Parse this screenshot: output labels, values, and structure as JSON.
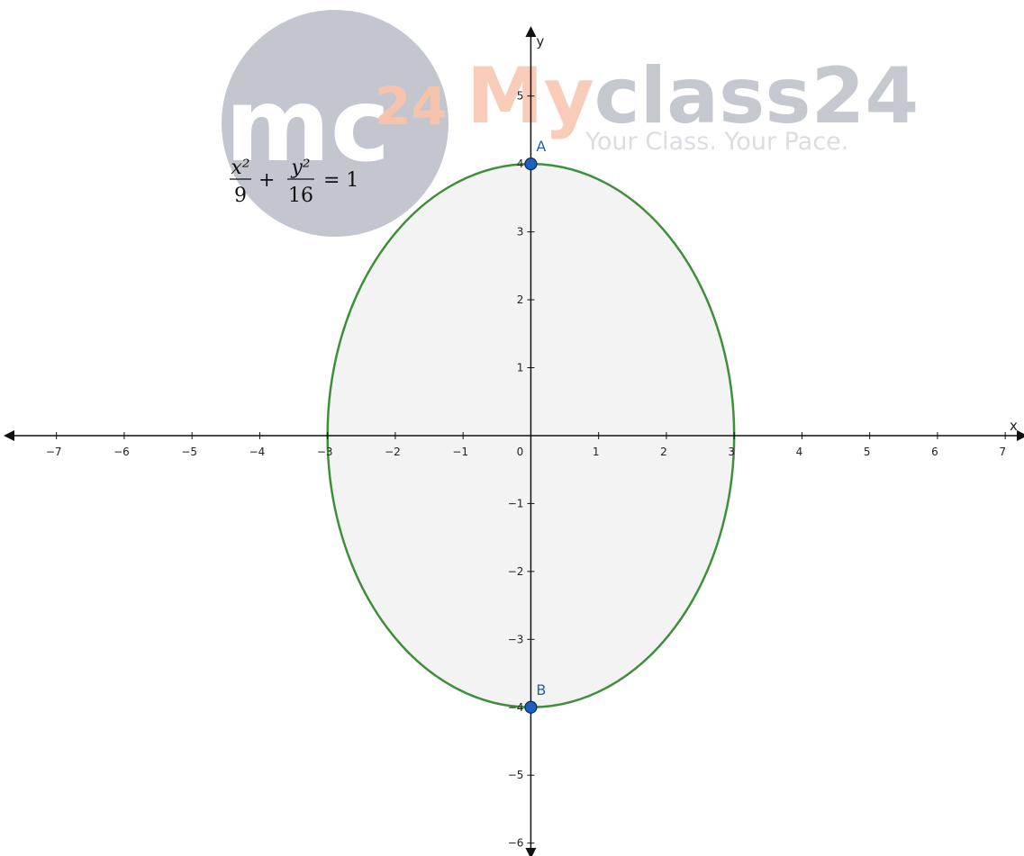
{
  "watermark": {
    "logo": "mc",
    "logo_sup": "24",
    "brand_a": "My",
    "brand_b": "class24",
    "tagline": "Your Class. Your Pace."
  },
  "equation": {
    "terms": [
      {
        "num": "x²",
        "den": "9"
      },
      {
        "num": "y²",
        "den": "16"
      }
    ],
    "plus": "+",
    "rhs": "= 1"
  },
  "axes": {
    "x_label": "x",
    "y_label": "y",
    "xlim": [
      -7.7,
      7.25
    ],
    "ylim": [
      -6.15,
      5.95
    ],
    "origin_label": "0",
    "xticks": [
      {
        "value": -7,
        "label": "−7"
      },
      {
        "value": -6,
        "label": "−6"
      },
      {
        "value": -5,
        "label": "−5"
      },
      {
        "value": -4,
        "label": "−4"
      },
      {
        "value": -3,
        "label": "−3"
      },
      {
        "value": -2,
        "label": "−2"
      },
      {
        "value": -1,
        "label": "−1"
      },
      1,
      2,
      3,
      4,
      5,
      6,
      7
    ],
    "yticks": [
      {
        "value": -6,
        "label": "−6"
      },
      {
        "value": -5,
        "label": "−5"
      },
      {
        "value": -4,
        "label": "−4"
      },
      {
        "value": -3,
        "label": "−3"
      },
      {
        "value": -2,
        "label": "−2"
      },
      {
        "value": -1,
        "label": "−1"
      },
      1,
      2,
      3,
      4,
      5
    ]
  },
  "ellipse": {
    "center": [
      0,
      0
    ],
    "a": 3,
    "b": 4,
    "color": "#3f8f3a",
    "fill": "#f3f3f3"
  },
  "points": [
    {
      "label": "A",
      "x": 0,
      "y": 4,
      "color": "#1f5fbf"
    },
    {
      "label": "B",
      "x": 0,
      "y": -4,
      "color": "#1f5fbf"
    }
  ]
}
